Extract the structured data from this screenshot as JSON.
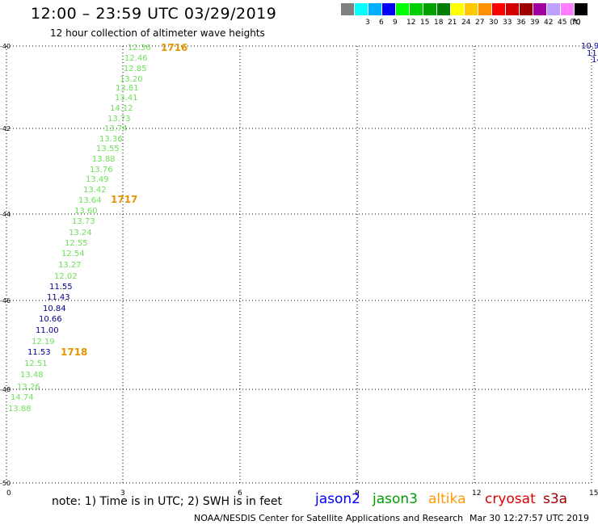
{
  "header": {
    "title": "12:00 – 23:59 UTC 03/29/2019",
    "subtitle": "12 hour collection of altimeter wave heights"
  },
  "legend": {
    "unit": "(ft)",
    "swatches": [
      {
        "color": "#808080",
        "label": ""
      },
      {
        "color": "#00ffff",
        "label": "3"
      },
      {
        "color": "#00b0ff",
        "label": "6"
      },
      {
        "color": "#0000ff",
        "label": "9"
      },
      {
        "color": "#00ff00",
        "label": "12"
      },
      {
        "color": "#00d000",
        "label": "15"
      },
      {
        "color": "#00a000",
        "label": "18"
      },
      {
        "color": "#008000",
        "label": "21"
      },
      {
        "color": "#ffff00",
        "label": "24"
      },
      {
        "color": "#ffc800",
        "label": "27"
      },
      {
        "color": "#ff9000",
        "label": "30"
      },
      {
        "color": "#ff0000",
        "label": "33"
      },
      {
        "color": "#d00000",
        "label": "36"
      },
      {
        "color": "#a00000",
        "label": "39"
      },
      {
        "color": "#a000a0",
        "label": "42"
      },
      {
        "color": "#c0a0ff",
        "label": "45"
      },
      {
        "color": "#ff80ff",
        "label": "70"
      },
      {
        "color": "#000000",
        "label": ""
      }
    ]
  },
  "map": {
    "x_ticks": [
      "0",
      "3",
      "6",
      "9",
      "12",
      "15"
    ],
    "y_ticks": [
      "-40",
      "-42",
      "-44",
      "-46",
      "-48",
      "-50"
    ]
  },
  "colors": {
    "green": "#6ee05a",
    "blue": "#00008b",
    "orange": "#e69500"
  },
  "observations": [
    {
      "v": "12.36",
      "c": "green"
    },
    {
      "v": "12.46",
      "c": "green"
    },
    {
      "v": "12.85",
      "c": "green"
    },
    {
      "v": "13.20",
      "c": "green"
    },
    {
      "v": "13.81",
      "c": "green"
    },
    {
      "v": "13.41",
      "c": "green"
    },
    {
      "v": "14.12",
      "c": "green"
    },
    {
      "v": "13.73",
      "c": "green"
    },
    {
      "v": "13.74",
      "c": "green"
    },
    {
      "v": "13.36",
      "c": "green"
    },
    {
      "v": "13.55",
      "c": "green"
    },
    {
      "v": "13.88",
      "c": "green"
    },
    {
      "v": "13.76",
      "c": "green"
    },
    {
      "v": "13.49",
      "c": "green"
    },
    {
      "v": "13.42",
      "c": "green"
    },
    {
      "v": "13.64",
      "c": "green"
    },
    {
      "v": "13.60",
      "c": "green"
    },
    {
      "v": "13.73",
      "c": "green"
    },
    {
      "v": "13.24",
      "c": "green"
    },
    {
      "v": "12.55",
      "c": "green"
    },
    {
      "v": "12.54",
      "c": "green"
    },
    {
      "v": "13.27",
      "c": "green"
    },
    {
      "v": "12.02",
      "c": "green"
    },
    {
      "v": "11.55",
      "c": "blue"
    },
    {
      "v": "11.43",
      "c": "blue"
    },
    {
      "v": "10.84",
      "c": "blue"
    },
    {
      "v": "10.66",
      "c": "blue"
    },
    {
      "v": "11.00",
      "c": "blue"
    },
    {
      "v": "12.19",
      "c": "green"
    },
    {
      "v": "11.53",
      "c": "blue"
    },
    {
      "v": "12.51",
      "c": "green"
    },
    {
      "v": "13.48",
      "c": "green"
    },
    {
      "v": "13.26",
      "c": "green"
    },
    {
      "v": "14.74",
      "c": "green"
    },
    {
      "v": "13.88",
      "c": "green"
    }
  ],
  "time_marks": [
    "1716",
    "1717",
    "1718"
  ],
  "edge_values": [
    "10.9",
    "11",
    "14"
  ],
  "footer": {
    "note": "note:  1) Time is in UTC;  2) SWH is in feet",
    "satellites": [
      {
        "name": "jason2",
        "color": "#0000ff"
      },
      {
        "name": "jason3",
        "color": "#00a000"
      },
      {
        "name": "altika",
        "color": "#ff9900"
      },
      {
        "name": "cryosat",
        "color": "#e00000"
      },
      {
        "name": "s3a",
        "color": "#a00000"
      }
    ],
    "credit": "NOAA/NESDIS Center for Satellite Applications and Research",
    "timestamp": "Mar 30 12:27:57 UTC 2019"
  }
}
